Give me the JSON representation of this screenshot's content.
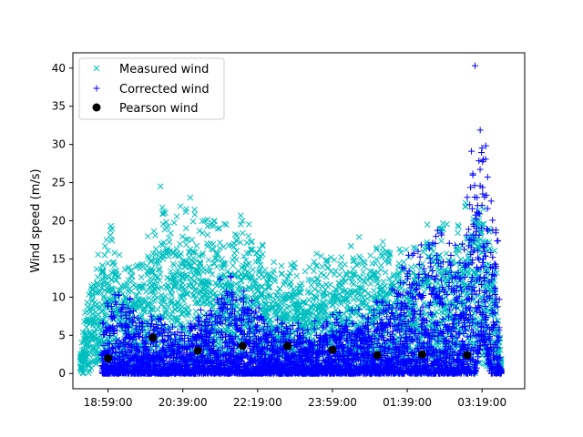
{
  "chart_data": {
    "type": "scatter",
    "title": "",
    "xlabel": "",
    "ylabel": "Wind speed (m/s)",
    "x_range": [
      "18:12:00",
      "04:16:00"
    ],
    "ylim": [
      -2,
      42
    ],
    "x_ticks": [
      "18:59:00",
      "20:39:00",
      "22:19:00",
      "23:59:00",
      "01:39:00",
      "03:19:00"
    ],
    "y_ticks": [
      "0",
      "5",
      "10",
      "15",
      "20",
      "25",
      "30",
      "35",
      "40"
    ],
    "grid": false,
    "legend_position": "top-left",
    "legend": [
      "Measured wind",
      "Corrected wind",
      "Pearson wind"
    ],
    "series": [
      {
        "name": "Measured wind",
        "marker": "x",
        "color": "#00bfbf",
        "envelope_times": [
          "18:22:00",
          "18:34:00",
          "18:42:00",
          "18:51:00",
          "19:10:00",
          "19:30:00",
          "19:50:00",
          "20:10:00",
          "20:30:00",
          "20:50:00",
          "21:10:00",
          "21:30:00",
          "21:50:00",
          "22:10:00",
          "22:30:00",
          "22:50:00",
          "23:10:00",
          "23:30:00",
          "23:50:00",
          "00:10:00",
          "00:30:00",
          "00:50:00",
          "01:10:00",
          "01:30:00",
          "01:50:00",
          "02:10:00",
          "02:30:00",
          "02:50:00",
          "03:10:00",
          "03:25:00",
          "03:35:00",
          "03:45:00"
        ],
        "envelope_max": [
          3,
          15,
          14,
          19,
          20,
          17,
          18,
          24,
          23,
          24,
          22,
          22,
          22,
          22,
          17,
          15,
          16,
          16,
          18,
          17,
          19,
          18,
          18,
          18,
          18,
          22,
          21,
          22,
          24,
          24,
          20,
          2
        ],
        "envelope_min": [
          0,
          0,
          1,
          2,
          0,
          0,
          0,
          0,
          0,
          0,
          0,
          0,
          0,
          0,
          0,
          0,
          0,
          0,
          0,
          0,
          0,
          0,
          0,
          0,
          0,
          0,
          0,
          0,
          0,
          1,
          0,
          0
        ],
        "peak_value": 24.5
      },
      {
        "name": "Corrected wind",
        "marker": "+",
        "color": "#0000ff",
        "envelope_times": [
          "18:51:00",
          "19:10:00",
          "19:30:00",
          "19:50:00",
          "20:10:00",
          "20:30:00",
          "20:50:00",
          "21:10:00",
          "21:30:00",
          "21:50:00",
          "22:10:00",
          "22:30:00",
          "22:50:00",
          "23:10:00",
          "23:30:00",
          "23:50:00",
          "00:10:00",
          "00:30:00",
          "00:50:00",
          "01:10:00",
          "01:30:00",
          "01:50:00",
          "02:10:00",
          "02:30:00",
          "02:50:00",
          "03:10:00",
          "03:20:00",
          "03:30:00",
          "03:40:00",
          "03:45:00"
        ],
        "envelope_max": [
          7,
          13,
          10,
          8,
          9,
          7,
          8,
          9,
          13,
          15,
          12,
          8,
          8,
          7,
          7,
          8,
          9,
          9,
          10,
          12,
          16,
          19,
          24,
          18,
          20,
          40,
          33,
          31,
          22,
          2
        ],
        "envelope_min": [
          0,
          0,
          0,
          0,
          0,
          0,
          0,
          0,
          0,
          0,
          0,
          0,
          0,
          0,
          0,
          0,
          0,
          0,
          0,
          0,
          0,
          0,
          0,
          0,
          0,
          0,
          5,
          0,
          0,
          0
        ],
        "peak_value": 40.3
      },
      {
        "name": "Pearson wind",
        "marker": "o",
        "color": "#000000",
        "points": [
          {
            "x": "18:59:00",
            "y": 2.0
          },
          {
            "x": "19:59:00",
            "y": 4.7
          },
          {
            "x": "20:59:00",
            "y": 3.0
          },
          {
            "x": "21:59:00",
            "y": 3.6
          },
          {
            "x": "22:59:00",
            "y": 3.6
          },
          {
            "x": "23:59:00",
            "y": 3.1
          },
          {
            "x": "00:59:00",
            "y": 2.4
          },
          {
            "x": "01:59:00",
            "y": 2.5
          },
          {
            "x": "02:59:00",
            "y": 2.4
          }
        ]
      }
    ]
  }
}
